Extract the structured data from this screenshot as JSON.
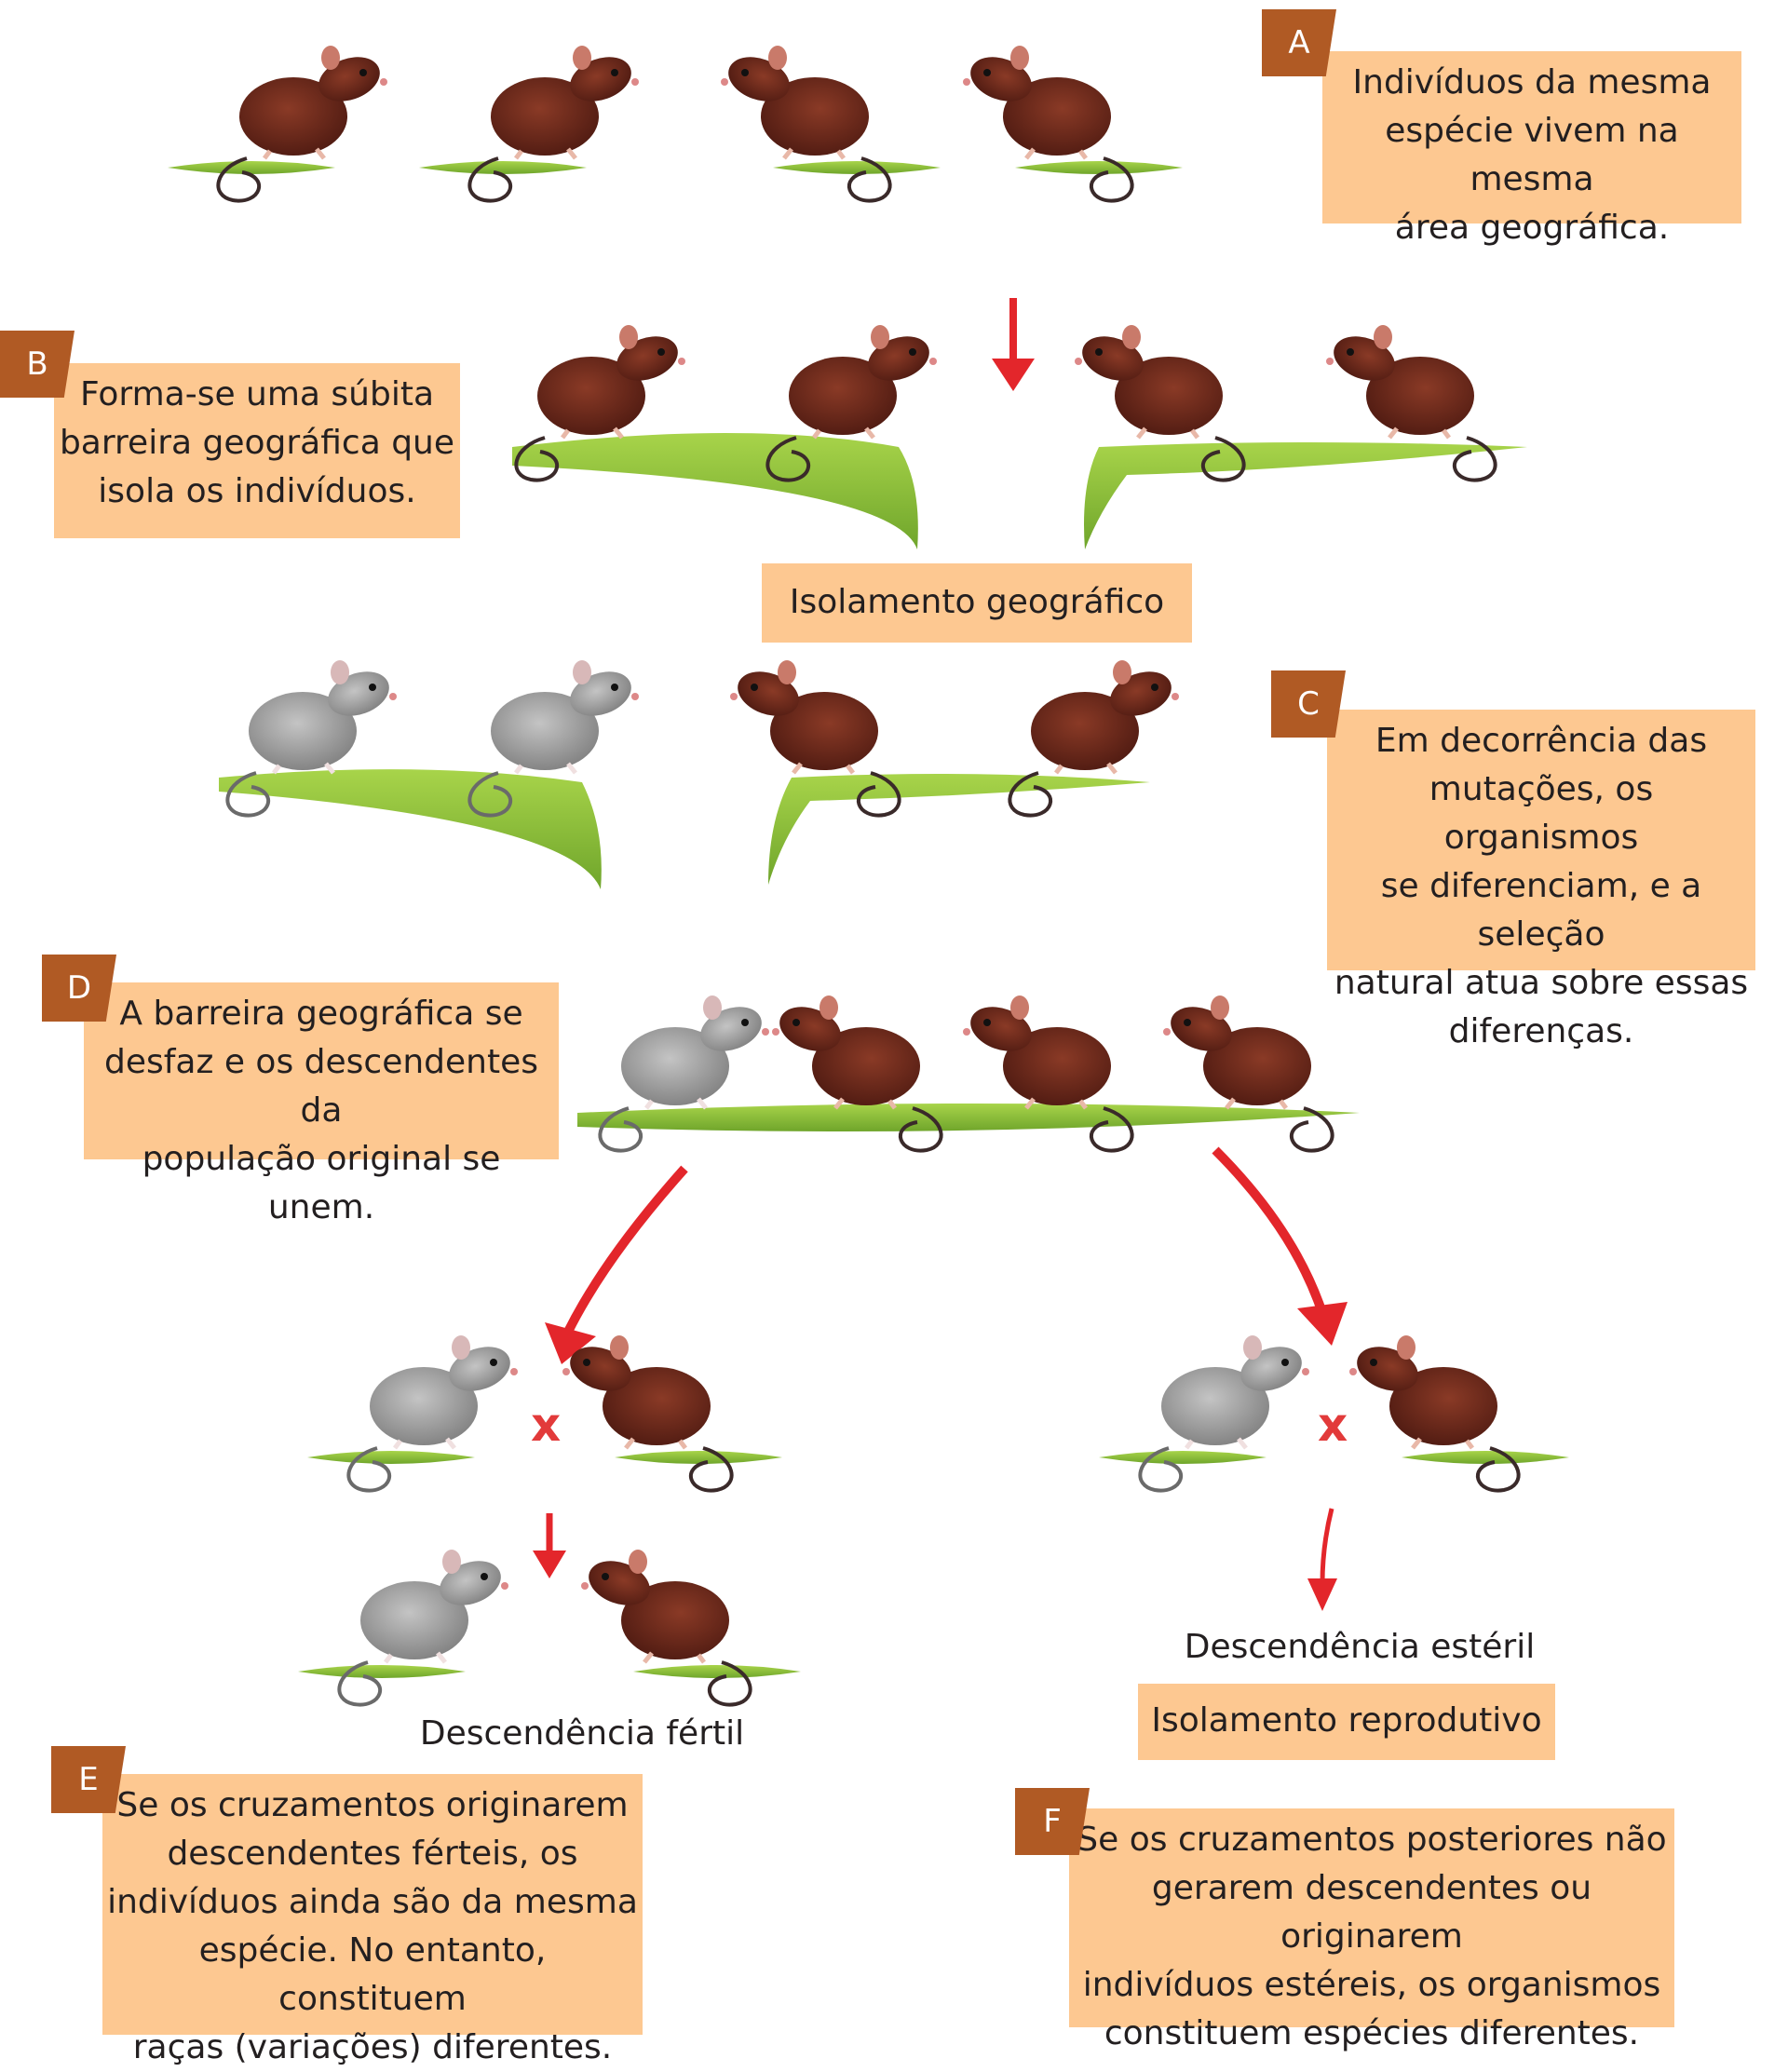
{
  "panels": {
    "a": {
      "tag": "A",
      "text": "Indivíduos da mesma\nespécie vivem na mesma\nárea geográfica."
    },
    "b": {
      "tag": "B",
      "text": "Forma-se uma súbita\nbarreira geográfica que\nisola os indivíduos."
    },
    "c": {
      "tag": "C",
      "text": "Em decorrência das\nmutações, os organismos\nse diferenciam, e a seleção\nnatural atua sobre essas\ndiferenças."
    },
    "d": {
      "tag": "D",
      "text": "A barreira geográfica se\ndesfaz e os descendentes da\npopulação original se unem."
    },
    "e": {
      "tag": "E",
      "text": "Se os cruzamentos originarem\ndescendentes férteis, os\nindivíduos ainda são da mesma\nespécie. No entanto, constituem\nraças (variações) diferentes."
    },
    "f": {
      "tag": "F",
      "text": "Se os cruzamentos posteriores não\ngerarem descendentes ou originarem\nindivíduos estéreis, os organismos\nconstituem espécies diferentes."
    }
  },
  "labels": {
    "geographic_isolation": "Isolamento geográfico",
    "fertile_offspring": "Descendência fértil",
    "sterile_offspring": "Descendência estéril",
    "reproductive_isolation": "Isolamento reprodutivo",
    "cross_symbol_left": "x",
    "cross_symbol_right": "x"
  },
  "colors": {
    "box_fill": "#fdc891",
    "tag_fill": "#b05a24",
    "arrow_red": "#e3262b",
    "ground_green": "#8cc63f",
    "mouse_brown": "#6b2a1c",
    "mouse_gray": "#9a9a9a"
  }
}
